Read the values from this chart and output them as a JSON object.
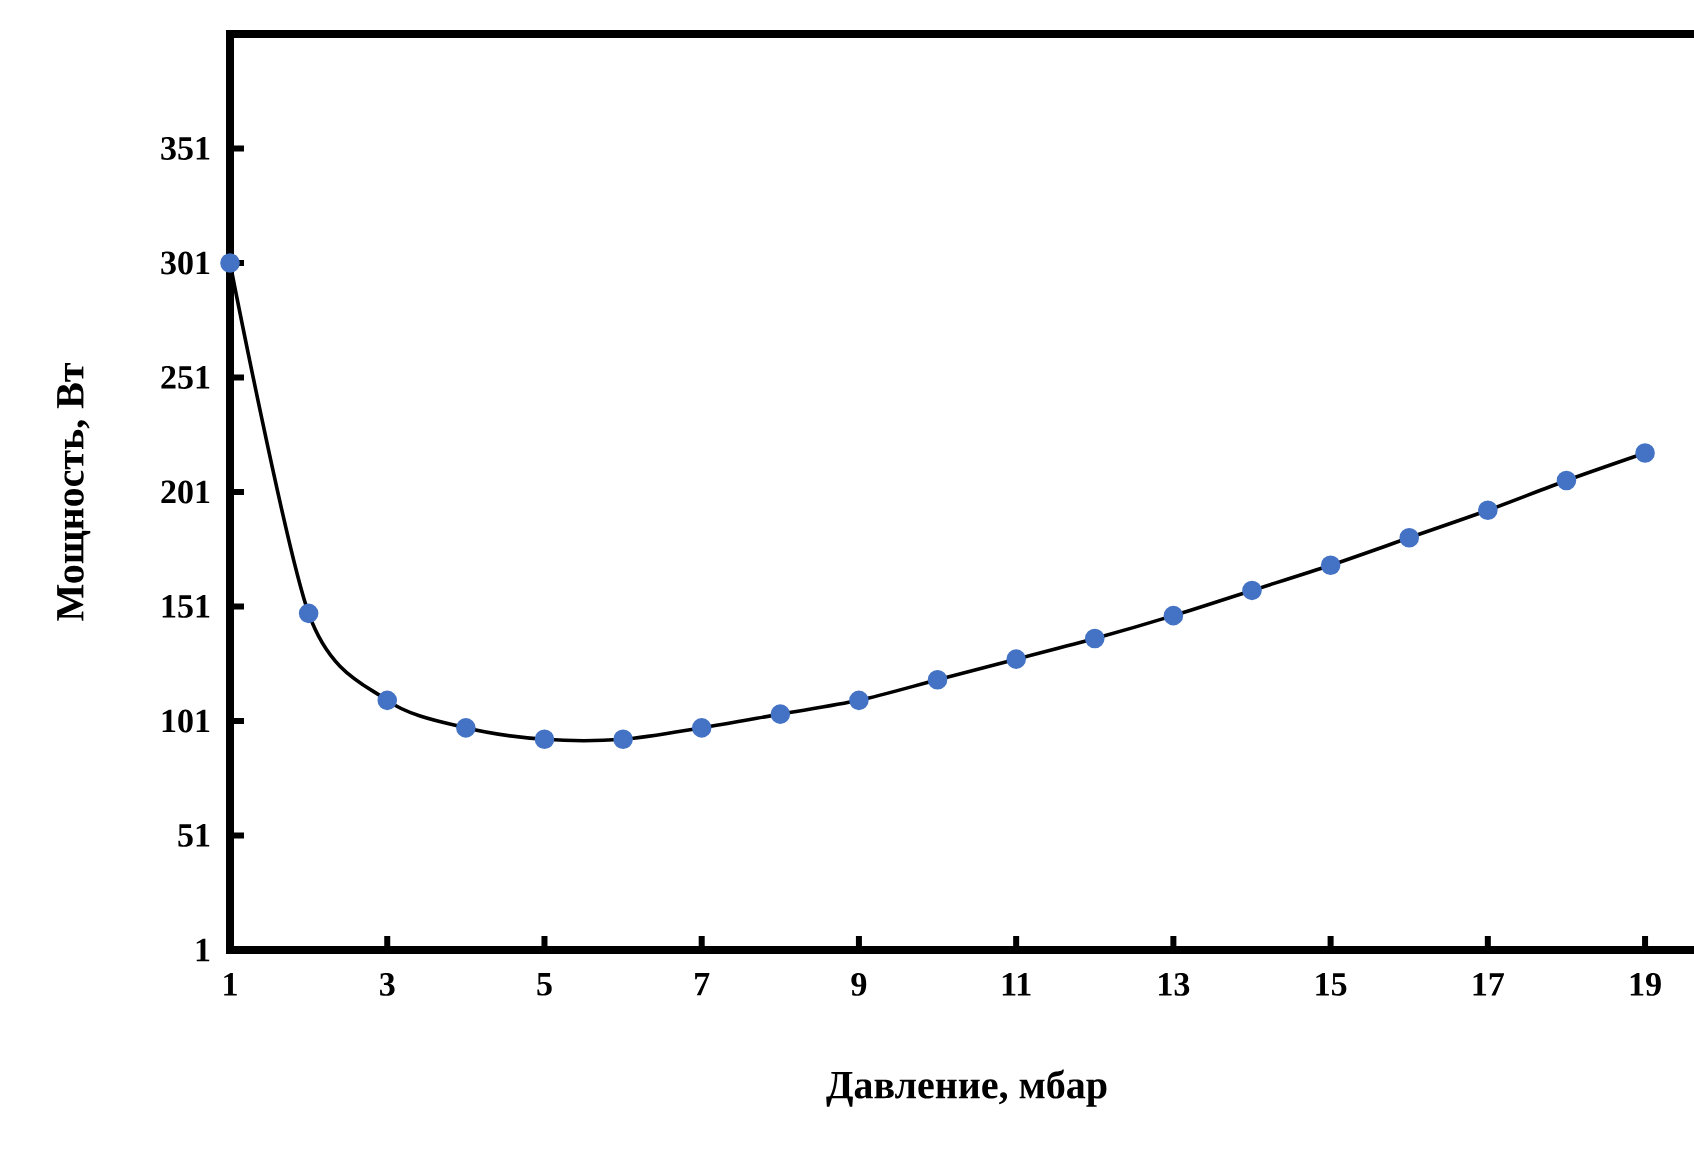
{
  "chart_data": {
    "type": "line",
    "xlabel": "Давление, мбар",
    "ylabel": "Мощность,  Вт",
    "x": [
      1,
      2,
      3,
      4,
      5,
      6,
      7,
      8,
      9,
      10,
      11,
      12,
      13,
      14,
      15,
      16,
      17,
      18,
      19
    ],
    "series": [
      {
        "color": "#4472c4",
        "values": [
          301,
          148,
          110,
          98,
          93,
          93,
          98,
          104,
          110,
          119,
          128,
          137,
          147,
          158,
          169,
          181,
          193,
          206,
          218
        ]
      }
    ],
    "xlim": [
      1,
      19.75
    ],
    "ylim": [
      1,
      401
    ],
    "xticks": [
      1,
      3,
      5,
      7,
      9,
      11,
      13,
      15,
      17,
      19
    ],
    "yticks": [
      1,
      51,
      101,
      151,
      201,
      251,
      301,
      351
    ],
    "marker": "circle",
    "line_style": "solid"
  }
}
